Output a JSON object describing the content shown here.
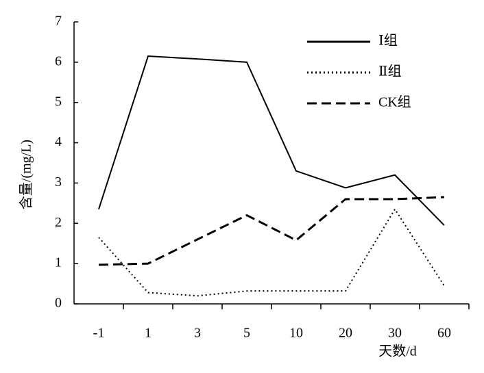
{
  "chart_data": {
    "type": "line",
    "categories": [
      "-1",
      "1",
      "3",
      "5",
      "10",
      "20",
      "30",
      "60"
    ],
    "x_label": "天数/d",
    "y_label": "含量/(mg/L)",
    "series": [
      {
        "name": "Ⅰ组",
        "color": "#000000",
        "style": "solid",
        "values": [
          2.35,
          6.15,
          6.08,
          6.0,
          3.3,
          2.88,
          3.2,
          1.95
        ]
      },
      {
        "name": "Ⅱ组",
        "color": "#000000",
        "style": "dotted",
        "values": [
          1.65,
          0.28,
          0.2,
          0.32,
          0.32,
          0.32,
          2.35,
          0.45
        ]
      },
      {
        "name": "CK组",
        "color": "#000000",
        "style": "dashed",
        "values": [
          0.97,
          1.0,
          1.6,
          2.2,
          1.58,
          2.6,
          2.6,
          2.65
        ]
      }
    ],
    "ylim": [
      0,
      7
    ],
    "yticks": [
      0,
      1,
      2,
      3,
      4,
      5,
      6,
      7
    ],
    "legend": "top-right"
  }
}
